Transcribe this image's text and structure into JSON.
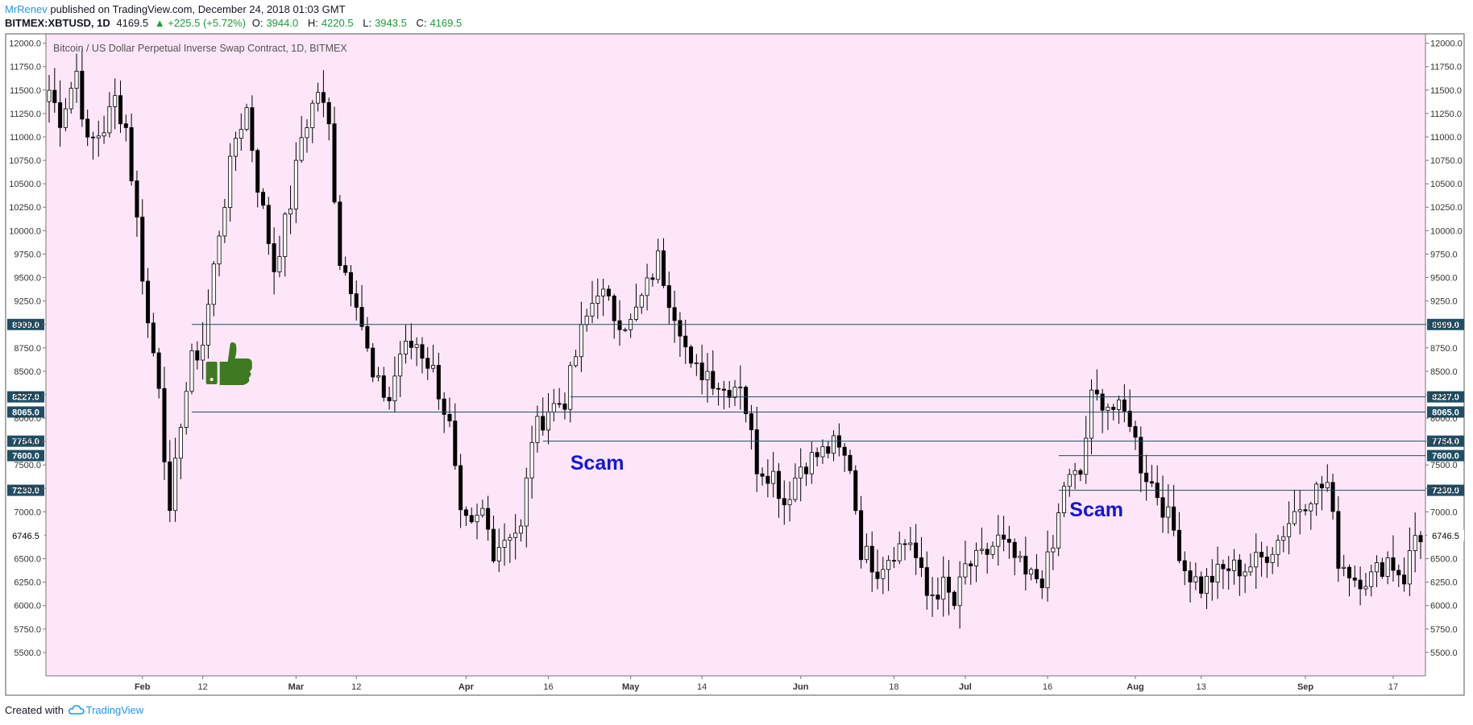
{
  "header": {
    "author": "MrRenev",
    "published_text": "published on TradingView.com, December 24, 2018 01:03 GMT",
    "symbol": "BITMEX:XBTUSD, 1D",
    "last": "4169.5",
    "change": "▲ +225.5 (+5.72%)",
    "o_label": "O:",
    "o_value": "3944.0",
    "h_label": "H:",
    "h_value": "4220.5",
    "l_label": "L:",
    "l_value": "3943.5",
    "c_label": "C:",
    "c_value": "4169.5"
  },
  "footer": {
    "created_with": "Created with",
    "brand": "TradingView"
  },
  "colors": {
    "plot_bg": "#fce6f8",
    "line": "#1f4e64",
    "label_bg": "#1f4e64",
    "label_text": "#ffffff",
    "scam": "#1414dc",
    "thumb": "#3f7a22",
    "up_fill": "#ffffff",
    "down_fill": "#000000"
  },
  "chart_data": {
    "type": "candlestick",
    "title": "Bitcoin / US Dollar Perpetual Inverse Swap Contract, 1D, BITMEX",
    "y_min": 5250,
    "y_max": 12100,
    "y_ticks": [
      "5500.0",
      "5750.0",
      "6000.0",
      "6250.0",
      "6500.0",
      "6750.0",
      "7000.0",
      "7250.0",
      "7500.0",
      "7750.0",
      "8000.0",
      "8250.0",
      "8500.0",
      "8750.0",
      "9000.0",
      "9250.0",
      "9500.0",
      "9750.0",
      "10000.0",
      "10250.0",
      "10500.0",
      "10750.0",
      "11000.0",
      "11250.0",
      "11500.0",
      "11750.0",
      "12000.0"
    ],
    "x_start": "2018-01-15",
    "x_end": "2018-09-22",
    "x_ticks": [
      {
        "label": "Feb",
        "date": "2018-02-01",
        "bold": true
      },
      {
        "label": "12",
        "date": "2018-02-12",
        "bold": false
      },
      {
        "label": "Mar",
        "date": "2018-03-01",
        "bold": true
      },
      {
        "label": "12",
        "date": "2018-03-12",
        "bold": false
      },
      {
        "label": "Apr",
        "date": "2018-04-01",
        "bold": true
      },
      {
        "label": "16",
        "date": "2018-04-16",
        "bold": false
      },
      {
        "label": "May",
        "date": "2018-05-01",
        "bold": true
      },
      {
        "label": "14",
        "date": "2018-05-14",
        "bold": false
      },
      {
        "label": "Jun",
        "date": "2018-06-01",
        "bold": true
      },
      {
        "label": "18",
        "date": "2018-06-18",
        "bold": false
      },
      {
        "label": "Jul",
        "date": "2018-07-01",
        "bold": true
      },
      {
        "label": "16",
        "date": "2018-07-16",
        "bold": false
      },
      {
        "label": "Aug",
        "date": "2018-08-01",
        "bold": true
      },
      {
        "label": "13",
        "date": "2018-08-13",
        "bold": false
      },
      {
        "label": "Sep",
        "date": "2018-09-01",
        "bold": true
      },
      {
        "label": "17",
        "date": "2018-09-17",
        "bold": false
      }
    ],
    "hlines": [
      {
        "label": "8999.0",
        "value": 8999,
        "start": "2018-02-10"
      },
      {
        "label": "8227.0",
        "value": 8227,
        "start": "2018-04-20"
      },
      {
        "label": "8065.0",
        "value": 8065,
        "start": "2018-02-10"
      },
      {
        "label": "7754.0",
        "value": 7754,
        "start": "2018-04-15"
      },
      {
        "label": "7600.0",
        "value": 7600,
        "start": "2018-07-18"
      },
      {
        "label": "7230.0",
        "value": 7230,
        "start": "2018-07-18"
      }
    ],
    "last_price_label": "6746.5",
    "last_price_value": 6746.5,
    "annotations": [
      {
        "text": "Scam",
        "date": "2018-04-20",
        "price": 7450
      },
      {
        "text": "Scam",
        "date": "2018-07-20",
        "price": 6950
      }
    ],
    "thumbs_up": {
      "date": "2018-02-17",
      "price": 8550
    },
    "anchors": [
      [
        "2018-01-15",
        11500
      ],
      [
        "2018-01-17",
        11200
      ],
      [
        "2018-01-20",
        11700
      ],
      [
        "2018-01-22",
        10900
      ],
      [
        "2018-01-25",
        11100
      ],
      [
        "2018-01-27",
        11400
      ],
      [
        "2018-01-29",
        11100
      ],
      [
        "2018-01-31",
        10100
      ],
      [
        "2018-02-02",
        9000
      ],
      [
        "2018-02-04",
        8400
      ],
      [
        "2018-02-06",
        6900
      ],
      [
        "2018-02-08",
        8000
      ],
      [
        "2018-02-10",
        8600
      ],
      [
        "2018-02-12",
        8800
      ],
      [
        "2018-02-15",
        10000
      ],
      [
        "2018-02-18",
        11000
      ],
      [
        "2018-02-20",
        11300
      ],
      [
        "2018-02-22",
        10500
      ],
      [
        "2018-02-25",
        9600
      ],
      [
        "2018-02-28",
        10300
      ],
      [
        "2018-03-02",
        11000
      ],
      [
        "2018-03-05",
        11500
      ],
      [
        "2018-03-07",
        11100
      ],
      [
        "2018-03-09",
        9700
      ],
      [
        "2018-03-12",
        9300
      ],
      [
        "2018-03-15",
        8400
      ],
      [
        "2018-03-18",
        8200
      ],
      [
        "2018-03-20",
        8700
      ],
      [
        "2018-03-23",
        8800
      ],
      [
        "2018-03-26",
        8500
      ],
      [
        "2018-03-29",
        7900
      ],
      [
        "2018-03-31",
        6900
      ],
      [
        "2018-04-02",
        6800
      ],
      [
        "2018-04-04",
        7000
      ],
      [
        "2018-04-06",
        6600
      ],
      [
        "2018-04-09",
        6800
      ],
      [
        "2018-04-11",
        6800
      ],
      [
        "2018-04-13",
        7800
      ],
      [
        "2018-04-16",
        8100
      ],
      [
        "2018-04-19",
        8200
      ],
      [
        "2018-04-22",
        8900
      ],
      [
        "2018-04-25",
        9400
      ],
      [
        "2018-04-28",
        9100
      ],
      [
        "2018-05-01",
        9000
      ],
      [
        "2018-05-04",
        9400
      ],
      [
        "2018-05-06",
        9700
      ],
      [
        "2018-05-08",
        9300
      ],
      [
        "2018-05-10",
        9000
      ],
      [
        "2018-05-12",
        8500
      ],
      [
        "2018-05-15",
        8500
      ],
      [
        "2018-05-18",
        8300
      ],
      [
        "2018-05-21",
        8400
      ],
      [
        "2018-05-24",
        7500
      ],
      [
        "2018-05-27",
        7400
      ],
      [
        "2018-05-29",
        7100
      ],
      [
        "2018-06-01",
        7500
      ],
      [
        "2018-06-04",
        7600
      ],
      [
        "2018-06-07",
        7700
      ],
      [
        "2018-06-10",
        7500
      ],
      [
        "2018-06-12",
        6600
      ],
      [
        "2018-06-15",
        6400
      ],
      [
        "2018-06-18",
        6600
      ],
      [
        "2018-06-21",
        6700
      ],
      [
        "2018-06-24",
        6100
      ],
      [
        "2018-06-27",
        6200
      ],
      [
        "2018-06-29",
        6000
      ],
      [
        "2018-07-01",
        6400
      ],
      [
        "2018-07-04",
        6500
      ],
      [
        "2018-07-07",
        6700
      ],
      [
        "2018-07-10",
        6500
      ],
      [
        "2018-07-12",
        6300
      ],
      [
        "2018-07-15",
        6300
      ],
      [
        "2018-07-17",
        6600
      ],
      [
        "2018-07-19",
        7300
      ],
      [
        "2018-07-22",
        7400
      ],
      [
        "2018-07-24",
        8200
      ],
      [
        "2018-07-26",
        8200
      ],
      [
        "2018-07-28",
        8100
      ],
      [
        "2018-07-31",
        8000
      ],
      [
        "2018-08-02",
        7500
      ],
      [
        "2018-08-05",
        7200
      ],
      [
        "2018-08-08",
        6800
      ],
      [
        "2018-08-10",
        6400
      ],
      [
        "2018-08-13",
        6200
      ],
      [
        "2018-08-15",
        6300
      ],
      [
        "2018-08-18",
        6400
      ],
      [
        "2018-08-21",
        6400
      ],
      [
        "2018-08-24",
        6500
      ],
      [
        "2018-08-27",
        6700
      ],
      [
        "2018-08-30",
        7000
      ],
      [
        "2018-09-02",
        7200
      ],
      [
        "2018-09-05",
        7300
      ],
      [
        "2018-09-07",
        6500
      ],
      [
        "2018-09-10",
        6300
      ],
      [
        "2018-09-13",
        6300
      ],
      [
        "2018-09-16",
        6500
      ],
      [
        "2018-09-19",
        6300
      ],
      [
        "2018-09-21",
        6750
      ]
    ]
  }
}
